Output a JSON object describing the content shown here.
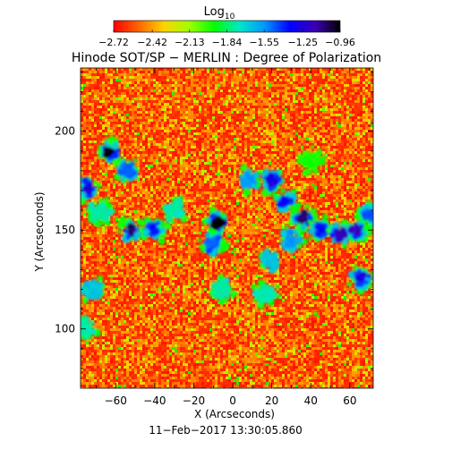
{
  "chart_data": {
    "type": "heatmap",
    "title": "Hinode SOT/SP − MERLIN : Degree of Polarization",
    "xlabel": "X (Arcseconds)",
    "ylabel": "Y (Arcseconds)",
    "xlim": [
      -78,
      72
    ],
    "ylim": [
      70,
      232
    ],
    "x_ticks": [
      -60,
      -40,
      -20,
      0,
      20,
      40,
      60
    ],
    "x_tick_labels": [
      "−60",
      "−40",
      "−20",
      "0",
      "20",
      "40",
      "60"
    ],
    "y_ticks": [
      100,
      150,
      200
    ],
    "y_tick_labels": [
      "100",
      "150",
      "200"
    ],
    "timestamp": "11−Feb−2017 13:30:05.860",
    "colorbar": {
      "label": "Log",
      "label_subscript": "10",
      "range": [
        -2.72,
        -0.96
      ],
      "tick_values": [
        -2.72,
        -2.42,
        -2.13,
        -1.84,
        -1.55,
        -1.25,
        -0.96
      ],
      "tick_labels": [
        "−2.72",
        "−2.42",
        "−2.13",
        "−1.84",
        "−1.55",
        "−1.25",
        "−0.96"
      ],
      "colormap": [
        "#ff0000",
        "#ff6600",
        "#ffd200",
        "#a0ff00",
        "#00ff00",
        "#00e6c8",
        "#0096ff",
        "#0000ff",
        "#3c00b4",
        "#000000"
      ]
    },
    "background_level": -2.65,
    "regions": [
      {
        "x": -63,
        "y": 190,
        "level": -1.0
      },
      {
        "x": -54,
        "y": 180,
        "level": -1.5
      },
      {
        "x": -75,
        "y": 171,
        "level": -1.3
      },
      {
        "x": -68,
        "y": 160,
        "level": -1.8
      },
      {
        "x": -52,
        "y": 150,
        "level": -1.1
      },
      {
        "x": -40,
        "y": 150,
        "level": -1.4
      },
      {
        "x": -30,
        "y": 160,
        "level": -1.8
      },
      {
        "x": -8,
        "y": 154,
        "level": -1.0
      },
      {
        "x": -10,
        "y": 143,
        "level": -1.5
      },
      {
        "x": 8,
        "y": 175,
        "level": -1.6
      },
      {
        "x": 20,
        "y": 175,
        "level": -1.3
      },
      {
        "x": 27,
        "y": 165,
        "level": -1.4
      },
      {
        "x": 36,
        "y": 156,
        "level": -1.1
      },
      {
        "x": 45,
        "y": 150,
        "level": -1.4
      },
      {
        "x": 55,
        "y": 148,
        "level": -1.2
      },
      {
        "x": 63,
        "y": 150,
        "level": -1.2
      },
      {
        "x": 70,
        "y": 158,
        "level": -1.5
      },
      {
        "x": 20,
        "y": 135,
        "level": -1.7
      },
      {
        "x": 17,
        "y": 118,
        "level": -1.8
      },
      {
        "x": 30,
        "y": 145,
        "level": -1.6
      },
      {
        "x": 66,
        "y": 126,
        "level": -1.3
      },
      {
        "x": -72,
        "y": 120,
        "level": -1.7
      },
      {
        "x": -5,
        "y": 120,
        "level": -1.8
      },
      {
        "x": -76,
        "y": 100,
        "level": -1.8
      },
      {
        "x": 40,
        "y": 185,
        "level": -2.0
      }
    ]
  }
}
